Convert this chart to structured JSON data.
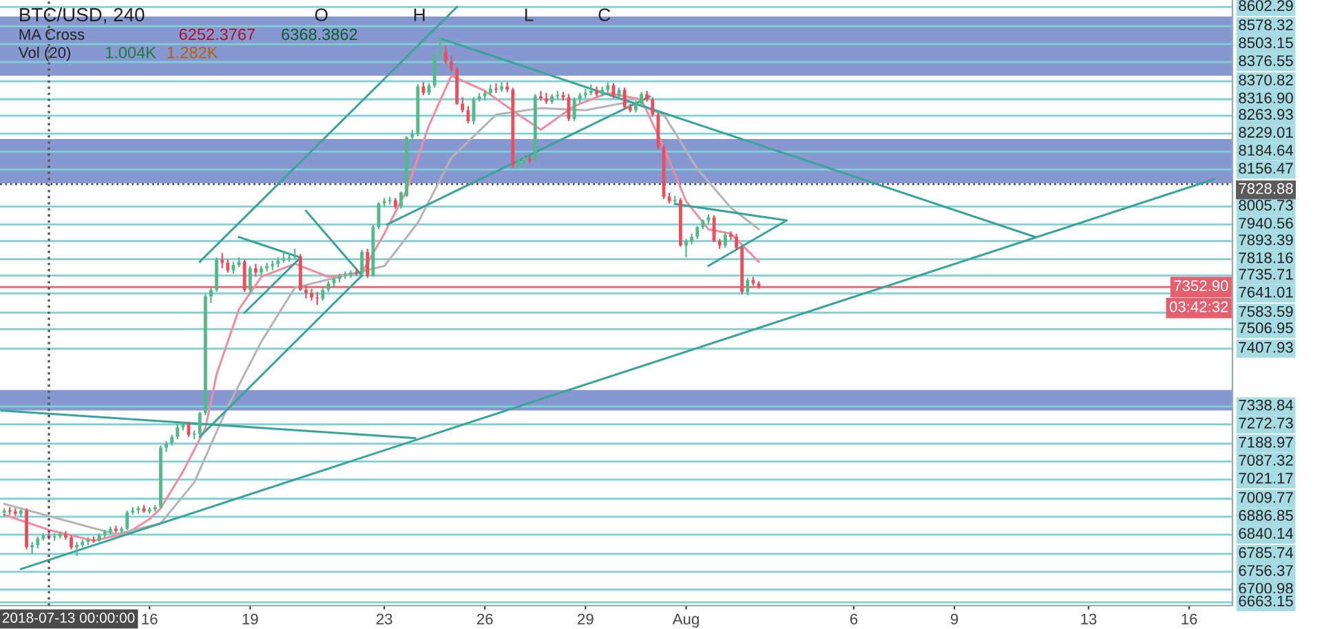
{
  "chart_data": {
    "type": "candlestick",
    "title": "BTC/USD, 240",
    "x": [
      "2018-07-11T16:00",
      "2018-07-11T20:00",
      "2018-07-12T00:00",
      "2018-07-12T04:00",
      "2018-07-12T08:00",
      "2018-07-12T12:00",
      "2018-07-12T16:00",
      "2018-07-12T20:00",
      "2018-07-13T00:00",
      "2018-07-13T04:00",
      "2018-07-13T08:00",
      "2018-07-13T12:00",
      "2018-07-13T16:00",
      "2018-07-13T20:00",
      "2018-07-14T00:00",
      "2018-07-14T04:00",
      "2018-07-14T08:00",
      "2018-07-14T12:00",
      "2018-07-14T16:00",
      "2018-07-14T20:00",
      "2018-07-15T00:00",
      "2018-07-15T04:00",
      "2018-07-15T08:00",
      "2018-07-15T12:00",
      "2018-07-15T16:00",
      "2018-07-15T20:00",
      "2018-07-16T00:00",
      "2018-07-16T04:00",
      "2018-07-16T08:00",
      "2018-07-16T12:00",
      "2018-07-16T16:00",
      "2018-07-16T20:00",
      "2018-07-17T00:00",
      "2018-07-17T04:00",
      "2018-07-17T08:00",
      "2018-07-17T12:00",
      "2018-07-17T16:00",
      "2018-07-17T20:00",
      "2018-07-18T00:00",
      "2018-07-18T04:00",
      "2018-07-18T08:00",
      "2018-07-18T12:00",
      "2018-07-18T16:00",
      "2018-07-18T20:00",
      "2018-07-19T00:00",
      "2018-07-19T04:00",
      "2018-07-19T08:00",
      "2018-07-19T12:00",
      "2018-07-19T16:00",
      "2018-07-19T20:00",
      "2018-07-20T00:00",
      "2018-07-20T04:00",
      "2018-07-20T08:00",
      "2018-07-20T12:00",
      "2018-07-20T16:00",
      "2018-07-20T20:00",
      "2018-07-21T00:00",
      "2018-07-21T04:00",
      "2018-07-21T08:00",
      "2018-07-21T12:00",
      "2018-07-21T16:00",
      "2018-07-21T20:00",
      "2018-07-22T00:00",
      "2018-07-22T04:00",
      "2018-07-22T08:00",
      "2018-07-22T12:00",
      "2018-07-22T16:00",
      "2018-07-22T20:00",
      "2018-07-23T00:00",
      "2018-07-23T04:00",
      "2018-07-23T08:00",
      "2018-07-23T12:00",
      "2018-07-23T16:00",
      "2018-07-23T20:00",
      "2018-07-24T00:00",
      "2018-07-24T04:00",
      "2018-07-24T08:00",
      "2018-07-24T12:00",
      "2018-07-24T16:00",
      "2018-07-24T20:00",
      "2018-07-25T00:00",
      "2018-07-25T04:00",
      "2018-07-25T08:00",
      "2018-07-25T12:00",
      "2018-07-25T16:00",
      "2018-07-25T20:00",
      "2018-07-26T00:00",
      "2018-07-26T04:00",
      "2018-07-26T08:00",
      "2018-07-26T12:00",
      "2018-07-26T16:00",
      "2018-07-26T20:00",
      "2018-07-27T00:00",
      "2018-07-27T04:00",
      "2018-07-27T08:00",
      "2018-07-27T12:00",
      "2018-07-27T16:00",
      "2018-07-27T20:00",
      "2018-07-28T00:00",
      "2018-07-28T04:00",
      "2018-07-28T08:00",
      "2018-07-28T12:00",
      "2018-07-28T16:00",
      "2018-07-28T20:00",
      "2018-07-29T00:00",
      "2018-07-29T04:00",
      "2018-07-29T08:00",
      "2018-07-29T12:00",
      "2018-07-29T16:00",
      "2018-07-29T20:00",
      "2018-07-30T00:00",
      "2018-07-30T04:00",
      "2018-07-30T08:00",
      "2018-07-30T12:00",
      "2018-07-30T16:00",
      "2018-07-30T20:00",
      "2018-07-31T00:00",
      "2018-07-31T04:00",
      "2018-07-31T08:00",
      "2018-07-31T12:00",
      "2018-07-31T16:00",
      "2018-07-31T20:00",
      "2018-08-01T00:00",
      "2018-08-01T04:00",
      "2018-08-01T08:00",
      "2018-08-01T12:00",
      "2018-08-01T16:00",
      "2018-08-01T20:00",
      "2018-08-02T00:00",
      "2018-08-02T04:00",
      "2018-08-02T08:00",
      "2018-08-02T12:00",
      "2018-08-02T16:00",
      "2018-08-02T20:00",
      "2018-08-03T00:00",
      "2018-08-03T04:00"
    ],
    "ohlc": [
      [
        6310,
        6330,
        6290,
        6320
      ],
      [
        6320,
        6335,
        6300,
        6315
      ],
      [
        6315,
        6330,
        6295,
        6305
      ],
      [
        6305,
        6325,
        6290,
        6320
      ],
      [
        6320,
        6330,
        6140,
        6150
      ],
      [
        6150,
        6175,
        6120,
        6160
      ],
      [
        6160,
        6200,
        6145,
        6190
      ],
      [
        6190,
        6215,
        6180,
        6205
      ],
      [
        6205,
        6220,
        6185,
        6195
      ],
      [
        6195,
        6215,
        6180,
        6200
      ],
      [
        6200,
        6220,
        6190,
        6210
      ],
      [
        6210,
        6225,
        6185,
        6195
      ],
      [
        6195,
        6205,
        6140,
        6150
      ],
      [
        6150,
        6175,
        6110,
        6160
      ],
      [
        6160,
        6185,
        6150,
        6175
      ],
      [
        6175,
        6195,
        6160,
        6185
      ],
      [
        6185,
        6200,
        6170,
        6180
      ],
      [
        6180,
        6215,
        6175,
        6205
      ],
      [
        6205,
        6230,
        6195,
        6220
      ],
      [
        6220,
        6245,
        6210,
        6235
      ],
      [
        6235,
        6250,
        6215,
        6225
      ],
      [
        6225,
        6245,
        6215,
        6235
      ],
      [
        6235,
        6320,
        6230,
        6310
      ],
      [
        6310,
        6335,
        6300,
        6320
      ],
      [
        6320,
        6340,
        6305,
        6330
      ],
      [
        6330,
        6345,
        6310,
        6315
      ],
      [
        6315,
        6335,
        6305,
        6325
      ],
      [
        6325,
        6345,
        6315,
        6335
      ],
      [
        6335,
        6620,
        6330,
        6610
      ],
      [
        6610,
        6640,
        6590,
        6630
      ],
      [
        6630,
        6670,
        6620,
        6660
      ],
      [
        6660,
        6720,
        6650,
        6705
      ],
      [
        6705,
        6730,
        6690,
        6720
      ],
      [
        6720,
        6730,
        6660,
        6670
      ],
      [
        6670,
        6690,
        6650,
        6675
      ],
      [
        6675,
        6775,
        6665,
        6770
      ],
      [
        6770,
        7320,
        6760,
        7310
      ],
      [
        7310,
        7350,
        7280,
        7340
      ],
      [
        7340,
        7490,
        7330,
        7480
      ],
      [
        7480,
        7510,
        7440,
        7465
      ],
      [
        7465,
        7480,
        7420,
        7430
      ],
      [
        7430,
        7470,
        7415,
        7455
      ],
      [
        7455,
        7490,
        7445,
        7470
      ],
      [
        7470,
        7480,
        7330,
        7340
      ],
      [
        7340,
        7450,
        7320,
        7440
      ],
      [
        7440,
        7460,
        7400,
        7420
      ],
      [
        7420,
        7450,
        7405,
        7440
      ],
      [
        7440,
        7465,
        7425,
        7450
      ],
      [
        7450,
        7475,
        7430,
        7460
      ],
      [
        7460,
        7490,
        7445,
        7475
      ],
      [
        7475,
        7520,
        7465,
        7485
      ],
      [
        7485,
        7510,
        7470,
        7490
      ],
      [
        7490,
        7530,
        7480,
        7495
      ],
      [
        7495,
        7505,
        7335,
        7340
      ],
      [
        7340,
        7360,
        7300,
        7325
      ],
      [
        7325,
        7345,
        7290,
        7305
      ],
      [
        7305,
        7330,
        7270,
        7300
      ],
      [
        7300,
        7350,
        7290,
        7340
      ],
      [
        7340,
        7380,
        7330,
        7370
      ],
      [
        7370,
        7400,
        7355,
        7390
      ],
      [
        7390,
        7415,
        7375,
        7405
      ],
      [
        7405,
        7425,
        7390,
        7410
      ],
      [
        7410,
        7430,
        7395,
        7420
      ],
      [
        7420,
        7440,
        7405,
        7415
      ],
      [
        7415,
        7525,
        7405,
        7515
      ],
      [
        7515,
        7530,
        7395,
        7405
      ],
      [
        7405,
        7640,
        7400,
        7630
      ],
      [
        7630,
        7745,
        7620,
        7740
      ],
      [
        7740,
        7765,
        7725,
        7750
      ],
      [
        7750,
        7770,
        7735,
        7755
      ],
      [
        7755,
        7765,
        7715,
        7725
      ],
      [
        7725,
        7795,
        7715,
        7790
      ],
      [
        7775,
        8050,
        7770,
        8045
      ],
      [
        8045,
        8080,
        8020,
        8060
      ],
      [
        8060,
        8290,
        8050,
        8280
      ],
      [
        8280,
        8300,
        8240,
        8250
      ],
      [
        8250,
        8295,
        8240,
        8285
      ],
      [
        8285,
        8430,
        8275,
        8425
      ],
      [
        8425,
        8505,
        8410,
        8440
      ],
      [
        8440,
        8470,
        8385,
        8395
      ],
      [
        8395,
        8420,
        8350,
        8360
      ],
      [
        8360,
        8370,
        8195,
        8200
      ],
      [
        8200,
        8230,
        8160,
        8170
      ],
      [
        8170,
        8190,
        8110,
        8120
      ],
      [
        8120,
        8230,
        8105,
        8220
      ],
      [
        8220,
        8250,
        8210,
        8235
      ],
      [
        8235,
        8260,
        8215,
        8250
      ],
      [
        8250,
        8290,
        8240,
        8270
      ],
      [
        8270,
        8295,
        8250,
        8265
      ],
      [
        8265,
        8300,
        8255,
        8280
      ],
      [
        8280,
        8300,
        8255,
        8265
      ],
      [
        8265,
        8275,
        7905,
        7915
      ],
      [
        7915,
        7945,
        7900,
        7930
      ],
      [
        7930,
        7955,
        7920,
        7945
      ],
      [
        7945,
        7960,
        7925,
        7935
      ],
      [
        7935,
        8245,
        7930,
        8235
      ],
      [
        8235,
        8260,
        8215,
        8225
      ],
      [
        8225,
        8250,
        8200,
        8210
      ],
      [
        8210,
        8245,
        8200,
        8235
      ],
      [
        8235,
        8260,
        8220,
        8240
      ],
      [
        8240,
        8255,
        8215,
        8230
      ],
      [
        8230,
        8245,
        8120,
        8130
      ],
      [
        8130,
        8230,
        8120,
        8220
      ],
      [
        8220,
        8250,
        8205,
        8240
      ],
      [
        8240,
        8270,
        8225,
        8250
      ],
      [
        8250,
        8290,
        8240,
        8260
      ],
      [
        8260,
        8280,
        8235,
        8245
      ],
      [
        8245,
        8280,
        8235,
        8265
      ],
      [
        8265,
        8300,
        8255,
        8285
      ],
      [
        8285,
        8295,
        8225,
        8235
      ],
      [
        8235,
        8275,
        8225,
        8265
      ],
      [
        8265,
        8275,
        8175,
        8185
      ],
      [
        8185,
        8200,
        8160,
        8170
      ],
      [
        8170,
        8215,
        8160,
        8200
      ],
      [
        8200,
        8255,
        8190,
        8245
      ],
      [
        8245,
        8260,
        8210,
        8220
      ],
      [
        8220,
        8230,
        8140,
        8150
      ],
      [
        8150,
        8160,
        7990,
        8000
      ],
      [
        8000,
        8010,
        7760,
        7770
      ],
      [
        7770,
        7790,
        7740,
        7750
      ],
      [
        7750,
        7775,
        7740,
        7755
      ],
      [
        7755,
        7765,
        7540,
        7545
      ],
      [
        7545,
        7575,
        7490,
        7565
      ],
      [
        7565,
        7600,
        7550,
        7585
      ],
      [
        7585,
        7635,
        7575,
        7630
      ],
      [
        7630,
        7665,
        7620,
        7660
      ],
      [
        7660,
        7690,
        7645,
        7675
      ],
      [
        7675,
        7685,
        7560,
        7565
      ],
      [
        7565,
        7575,
        7530,
        7545
      ],
      [
        7545,
        7605,
        7535,
        7595
      ],
      [
        7595,
        7610,
        7570,
        7585
      ],
      [
        7585,
        7600,
        7525,
        7535
      ],
      [
        7535,
        7545,
        7320,
        7330
      ],
      [
        7330,
        7395,
        7315,
        7385
      ],
      [
        7385,
        7400,
        7360,
        7370
      ],
      [
        7370,
        7380,
        7345,
        7355
      ]
    ],
    "colors": [
      "#53b987",
      "#eb4d5c",
      "#eb4d5c",
      "#53b987",
      "#eb4d5c",
      "#53b987",
      "#53b987",
      "#53b987",
      "#eb4d5c",
      "#53b987",
      "#53b987",
      "#eb4d5c",
      "#eb4d5c",
      "#53b987",
      "#53b987",
      "#53b987",
      "#eb4d5c",
      "#53b987",
      "#53b987",
      "#53b987",
      "#eb4d5c",
      "#53b987",
      "#53b987",
      "#53b987",
      "#53b987",
      "#eb4d5c",
      "#53b987",
      "#53b987",
      "#53b987",
      "#53b987",
      "#53b987",
      "#53b987",
      "#53b987",
      "#eb4d5c",
      "#53b987",
      "#53b987",
      "#53b987",
      "#53b987",
      "#53b987",
      "#eb4d5c",
      "#eb4d5c",
      "#53b987",
      "#53b987",
      "#eb4d5c",
      "#53b987",
      "#eb4d5c",
      "#53b987",
      "#53b987",
      "#53b987",
      "#53b987",
      "#53b987",
      "#53b987",
      "#53b987",
      "#eb4d5c",
      "#eb4d5c",
      "#eb4d5c",
      "#eb4d5c",
      "#53b987",
      "#53b987",
      "#53b987",
      "#53b987",
      "#53b987",
      "#53b987",
      "#eb4d5c",
      "#53b987",
      "#eb4d5c",
      "#53b987",
      "#53b987",
      "#53b987",
      "#53b987",
      "#eb4d5c",
      "#53b987",
      "#53b987",
      "#53b987",
      "#53b987",
      "#eb4d5c",
      "#53b987",
      "#53b987",
      "#53b987",
      "#eb4d5c",
      "#eb4d5c",
      "#eb4d5c",
      "#eb4d5c",
      "#eb4d5c",
      "#53b987",
      "#53b987",
      "#53b987",
      "#53b987",
      "#eb4d5c",
      "#53b987",
      "#eb4d5c",
      "#eb4d5c",
      "#53b987",
      "#53b987",
      "#eb4d5c",
      "#53b987",
      "#eb4d5c",
      "#eb4d5c",
      "#53b987",
      "#53b987",
      "#eb4d5c",
      "#eb4d5c",
      "#53b987",
      "#53b987",
      "#53b987",
      "#53b987",
      "#eb4d5c",
      "#53b987",
      "#53b987",
      "#eb4d5c",
      "#53b987",
      "#eb4d5c",
      "#eb4d5c",
      "#53b987",
      "#53b987",
      "#eb4d5c",
      "#eb4d5c",
      "#eb4d5c",
      "#eb4d5c",
      "#eb4d5c",
      "#53b987",
      "#eb4d5c",
      "#53b987",
      "#53b987",
      "#53b987",
      "#53b987",
      "#53b987",
      "#eb4d5c",
      "#eb4d5c",
      "#53b987",
      "#eb4d5c",
      "#eb4d5c",
      "#eb4d5c",
      "#53b987",
      "#eb4d5c",
      "#eb4d5c"
    ],
    "series": [
      {
        "type": "line",
        "color": "#f08ca0",
        "x": [
          "2018-07-11T16:00",
          "2018-07-13T00:00",
          "2018-07-14T08:00",
          "2018-07-15T08:00",
          "2018-07-16T00:00",
          "2018-07-16T08:00",
          "2018-07-17T00:00",
          "2018-07-17T16:00",
          "2018-07-18T00:00",
          "2018-07-18T16:00",
          "2018-07-19T08:00",
          "2018-07-20T08:00",
          "2018-07-21T08:00",
          "2018-07-22T08:00",
          "2018-07-23T00:00",
          "2018-07-23T16:00",
          "2018-07-24T08:00",
          "2018-07-25T00:00",
          "2018-07-26T00:00",
          "2018-07-27T00:00",
          "2018-07-27T16:00",
          "2018-07-28T16:00",
          "2018-07-29T16:00",
          "2018-07-30T16:00",
          "2018-07-31T08:00",
          "2018-08-01T00:00",
          "2018-08-01T16:00",
          "2018-08-02T08:00",
          "2018-08-03T04:00"
        ],
        "values": [
          6300,
          6230,
          6180,
          6215,
          6280,
          6330,
          6500,
          6700,
          6950,
          7250,
          7400,
          7460,
          7400,
          7420,
          7600,
          7800,
          8100,
          8330,
          8260,
          8150,
          8080,
          8190,
          8250,
          8220,
          8000,
          7750,
          7620,
          7600,
          7470
        ]
      },
      {
        "type": "line",
        "color": "#b4b4b4",
        "x": [
          "2018-07-11T16:00",
          "2018-07-13T08:00",
          "2018-07-15T00:00",
          "2018-07-16T08:00",
          "2018-07-17T08:00",
          "2018-07-18T08:00",
          "2018-07-19T08:00",
          "2018-07-20T08:00",
          "2018-07-21T16:00",
          "2018-07-23T00:00",
          "2018-07-24T00:00",
          "2018-07-25T00:00",
          "2018-07-26T08:00",
          "2018-07-27T16:00",
          "2018-07-29T00:00",
          "2018-07-30T08:00",
          "2018-07-31T08:00",
          "2018-08-01T08:00",
          "2018-08-02T08:00",
          "2018-08-03T04:00"
        ],
        "values": [
          6350,
          6280,
          6210,
          6260,
          6450,
          6800,
          7100,
          7350,
          7400,
          7450,
          7650,
          7950,
          8150,
          8180,
          8170,
          8210,
          8150,
          7900,
          7720,
          7620
        ]
      },
      {
        "type": "line",
        "color": "#3aa39a",
        "x": [
          "2018-07-12T04:00",
          "2018-08-16T18:00"
        ],
        "values": [
          6049,
          7852
        ]
      },
      {
        "type": "line",
        "color": "#3aa39a",
        "x": [
          "2018-07-24T16:00",
          "2018-08-11T10:00"
        ],
        "values": [
          8502,
          7584
        ]
      },
      {
        "type": "line",
        "color": "#3aa39a",
        "x": [
          "2018-07-11T14:00",
          "2018-07-23T22:00"
        ],
        "values": [
          6782,
          6654
        ]
      },
      {
        "type": "line",
        "color": "#3aa39a",
        "x": [
          "2018-07-17T12:00",
          "2018-07-22T08:00"
        ],
        "values": [
          6661,
          7406
        ]
      },
      {
        "type": "line",
        "color": "#3aa39a",
        "x": [
          "2018-07-17T12:00",
          "2018-07-25T04:00"
        ],
        "values": [
          7470,
          8648
        ]
      },
      {
        "type": "line",
        "color": "#3aa39a",
        "x": [
          "2018-07-23T02:00",
          "2018-07-30T22:00"
        ],
        "values": [
          7642,
          8234
        ]
      },
      {
        "type": "line",
        "color": "#3aa39a",
        "x": [
          "2018-07-31T16:00",
          "2018-08-04T00:00",
          "2018-08-01T16:00"
        ],
        "values": [
          7737,
          7661,
          7451
        ]
      },
      {
        "type": "line",
        "color": "#3aa39a",
        "x": [
          "2018-07-18T16:00",
          "2018-07-20T12:00",
          "2018-07-18T20:00"
        ],
        "values": [
          7584,
          7489,
          7234
        ]
      },
      {
        "type": "line",
        "color": "#3aa39a",
        "x": [
          "2018-07-20T16:00",
          "2018-07-22T08:00"
        ],
        "values": [
          7705,
          7406
        ]
      }
    ],
    "xlim": [
      "2018-07-11T13:00",
      "2018-08-17T07:00"
    ],
    "xticks": [
      {
        "value": "2018-07-16",
        "label": "16"
      },
      {
        "value": "2018-07-19",
        "label": "19"
      },
      {
        "value": "2018-07-23",
        "label": "23"
      },
      {
        "value": "2018-07-26",
        "label": "26"
      },
      {
        "value": "2018-07-29",
        "label": "29"
      },
      {
        "value": "2018-08-01",
        "label": "Aug"
      },
      {
        "value": "2018-08-06",
        "label": "6"
      },
      {
        "value": "2018-08-09",
        "label": "9"
      },
      {
        "value": "2018-08-13",
        "label": "13"
      },
      {
        "value": "2018-08-16",
        "label": "16"
      }
    ],
    "ylim": [
      5880,
      8680
    ],
    "tick_labels": "x",
    "bands": [
      {
        "axis": "y",
        "from": 8330,
        "to": 8604,
        "color": "#7286c9"
      },
      {
        "axis": "y",
        "from": 7833,
        "to": 8037,
        "color": "#7286c9"
      },
      {
        "axis": "y",
        "from": 6782,
        "to": 6877,
        "color": "#7286c9"
      }
    ],
    "ref_lines": [
      {
        "axis": "y",
        "value": 8648
      },
      {
        "axis": "y",
        "value": 8559
      },
      {
        "axis": "y",
        "value": 8476
      },
      {
        "axis": "y",
        "value": 8393
      },
      {
        "axis": "y",
        "value": 8304
      },
      {
        "axis": "y",
        "value": 8221
      },
      {
        "axis": "y",
        "value": 8145
      },
      {
        "axis": "y",
        "value": 8062
      },
      {
        "axis": "y",
        "value": 7979
      },
      {
        "axis": "y",
        "value": 7896
      },
      {
        "axis": "y",
        "value": 7725
      },
      {
        "axis": "y",
        "value": 7642
      },
      {
        "axis": "y",
        "value": 7565
      },
      {
        "axis": "y",
        "value": 7482
      },
      {
        "axis": "y",
        "value": 7406
      },
      {
        "axis": "y",
        "value": 7323
      },
      {
        "axis": "y",
        "value": 7234
      },
      {
        "axis": "y",
        "value": 7158
      },
      {
        "axis": "y",
        "value": 7068
      },
      {
        "axis": "y",
        "value": 6801
      },
      {
        "axis": "y",
        "value": 6718
      },
      {
        "axis": "y",
        "value": 6629
      },
      {
        "axis": "y",
        "value": 6546
      },
      {
        "axis": "y",
        "value": 6463
      },
      {
        "axis": "y",
        "value": 6374
      },
      {
        "axis": "y",
        "value": 6291
      },
      {
        "axis": "y",
        "value": 6208
      },
      {
        "axis": "y",
        "value": 6119
      },
      {
        "axis": "y",
        "value": 6036
      },
      {
        "axis": "y",
        "value": 5954
      },
      {
        "axis": "y",
        "value": 5895
      },
      {
        "axis": "y",
        "value": 7352.9,
        "label": "7352.90",
        "color": "#e5606f"
      },
      {
        "axis": "y",
        "value": 7828.88,
        "label": "7828.88",
        "line_style": "dotted"
      },
      {
        "axis": "x",
        "value": "2018-07-13T00:00",
        "label": "2018-07-13 00:00:00",
        "line_style": "dotted"
      }
    ],
    "annotations": [
      "O",
      "H",
      "L",
      "C",
      "MA Cross",
      "6252.3767",
      "6368.3862",
      "Vol (20)",
      "1.004K",
      "1.282K",
      "03:42:32",
      "8602.29",
      "8578.32",
      "8503.15",
      "8376.55",
      "8370.82",
      "8316.90",
      "8263.93",
      "8229.01",
      "8184.64",
      "8156.47",
      "8005.73",
      "7940.56",
      "7893.39",
      "7818.16",
      "7735.71",
      "7641.01",
      "7583.59",
      "7506.95",
      "7407.93",
      "7338.84",
      "7272.73",
      "7188.97",
      "7087.32",
      "7021.17",
      "7009.77",
      "6886.85",
      "6840.14",
      "6785.74",
      "6756.37",
      "6700.98",
      "6663.15"
    ]
  }
}
